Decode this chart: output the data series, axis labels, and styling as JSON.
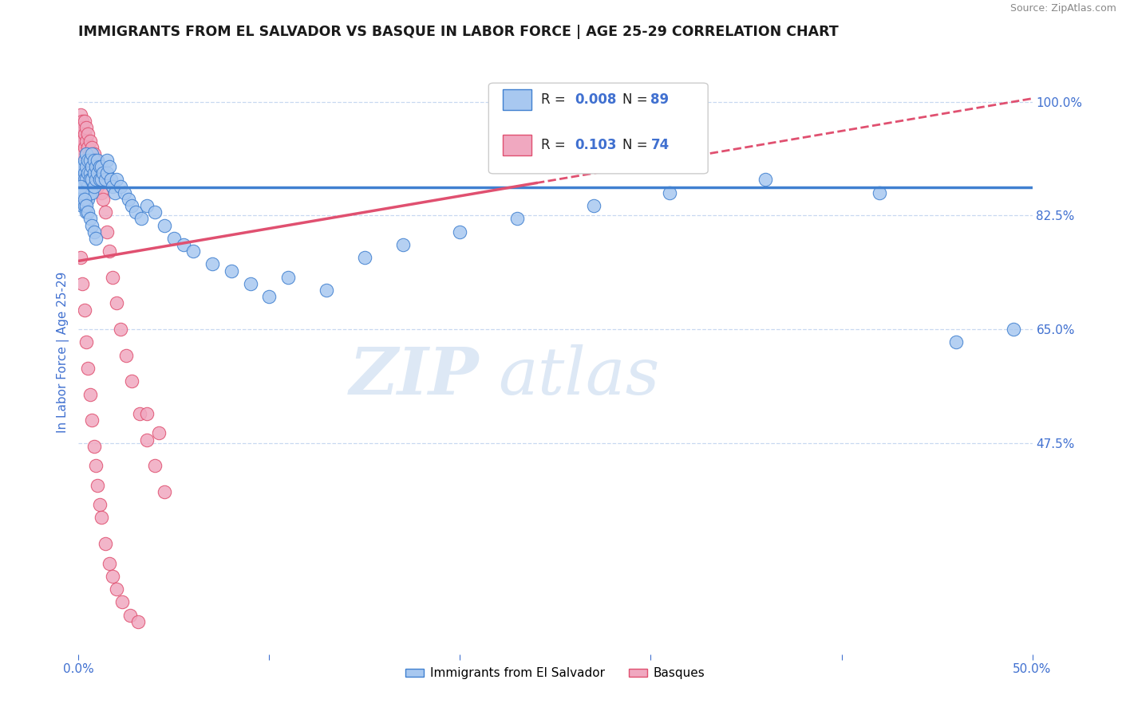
{
  "title": "IMMIGRANTS FROM EL SALVADOR VS BASQUE IN LABOR FORCE | AGE 25-29 CORRELATION CHART",
  "source": "Source: ZipAtlas.com",
  "ylabel": "In Labor Force | Age 25-29",
  "xlim": [
    0.0,
    0.5
  ],
  "ylim": [
    0.15,
    1.08
  ],
  "xticks": [
    0.0,
    0.1,
    0.2,
    0.3,
    0.4,
    0.5
  ],
  "xticklabels": [
    "0.0%",
    "",
    "",
    "",
    "",
    "50.0%"
  ],
  "yticks_right": [
    0.475,
    0.65,
    0.825,
    1.0
  ],
  "yticklabels_right": [
    "47.5%",
    "65.0%",
    "82.5%",
    "100.0%"
  ],
  "blue_color": "#a8c8f0",
  "pink_color": "#f0a8c0",
  "line_blue": "#4080d0",
  "line_pink": "#e05070",
  "grid_color": "#c8d8f0",
  "title_color": "#1a1a1a",
  "axis_label_color": "#4070d0",
  "blue_trend_y0": 0.868,
  "blue_trend_y1": 0.868,
  "pink_trend_y0": 0.755,
  "pink_trend_y1": 1.005,
  "blue_scatter_x": [
    0.001,
    0.001,
    0.001,
    0.001,
    0.002,
    0.002,
    0.002,
    0.002,
    0.002,
    0.003,
    0.003,
    0.003,
    0.003,
    0.003,
    0.004,
    0.004,
    0.004,
    0.004,
    0.004,
    0.004,
    0.005,
    0.005,
    0.005,
    0.005,
    0.006,
    0.006,
    0.006,
    0.006,
    0.007,
    0.007,
    0.007,
    0.007,
    0.008,
    0.008,
    0.008,
    0.009,
    0.009,
    0.01,
    0.01,
    0.011,
    0.011,
    0.012,
    0.012,
    0.013,
    0.014,
    0.015,
    0.015,
    0.016,
    0.017,
    0.018,
    0.019,
    0.02,
    0.022,
    0.024,
    0.026,
    0.028,
    0.03,
    0.033,
    0.036,
    0.04,
    0.045,
    0.05,
    0.055,
    0.06,
    0.07,
    0.08,
    0.09,
    0.1,
    0.11,
    0.13,
    0.15,
    0.17,
    0.2,
    0.23,
    0.27,
    0.31,
    0.36,
    0.42,
    0.46,
    0.49,
    0.001,
    0.002,
    0.003,
    0.004,
    0.005,
    0.006,
    0.007,
    0.008,
    0.009
  ],
  "blue_scatter_y": [
    0.9,
    0.88,
    0.87,
    0.85,
    0.9,
    0.88,
    0.87,
    0.86,
    0.84,
    0.91,
    0.89,
    0.88,
    0.86,
    0.84,
    0.92,
    0.9,
    0.88,
    0.86,
    0.85,
    0.83,
    0.91,
    0.89,
    0.87,
    0.85,
    0.91,
    0.89,
    0.88,
    0.86,
    0.92,
    0.9,
    0.88,
    0.86,
    0.91,
    0.89,
    0.87,
    0.9,
    0.88,
    0.91,
    0.89,
    0.9,
    0.88,
    0.9,
    0.88,
    0.89,
    0.88,
    0.91,
    0.89,
    0.9,
    0.88,
    0.87,
    0.86,
    0.88,
    0.87,
    0.86,
    0.85,
    0.84,
    0.83,
    0.82,
    0.84,
    0.83,
    0.81,
    0.79,
    0.78,
    0.77,
    0.75,
    0.74,
    0.72,
    0.7,
    0.73,
    0.71,
    0.76,
    0.78,
    0.8,
    0.82,
    0.84,
    0.86,
    0.88,
    0.86,
    0.63,
    0.65,
    0.87,
    0.86,
    0.85,
    0.84,
    0.83,
    0.82,
    0.81,
    0.8,
    0.79
  ],
  "pink_scatter_x": [
    0.0,
    0.001,
    0.001,
    0.001,
    0.001,
    0.001,
    0.002,
    0.002,
    0.002,
    0.002,
    0.002,
    0.002,
    0.003,
    0.003,
    0.003,
    0.003,
    0.003,
    0.004,
    0.004,
    0.004,
    0.004,
    0.004,
    0.005,
    0.005,
    0.005,
    0.005,
    0.006,
    0.006,
    0.006,
    0.006,
    0.007,
    0.007,
    0.007,
    0.008,
    0.008,
    0.009,
    0.009,
    0.01,
    0.01,
    0.011,
    0.012,
    0.013,
    0.014,
    0.015,
    0.016,
    0.018,
    0.02,
    0.022,
    0.025,
    0.028,
    0.032,
    0.036,
    0.04,
    0.045,
    0.001,
    0.002,
    0.003,
    0.004,
    0.005,
    0.006,
    0.007,
    0.008,
    0.009,
    0.01,
    0.011,
    0.012,
    0.014,
    0.016,
    0.018,
    0.02,
    0.023,
    0.027,
    0.031,
    0.036,
    0.042
  ],
  "pink_scatter_y": [
    0.88,
    0.98,
    0.96,
    0.94,
    0.88,
    0.86,
    0.97,
    0.96,
    0.94,
    0.92,
    0.88,
    0.86,
    0.97,
    0.95,
    0.93,
    0.9,
    0.87,
    0.96,
    0.94,
    0.92,
    0.89,
    0.87,
    0.95,
    0.93,
    0.91,
    0.88,
    0.94,
    0.92,
    0.9,
    0.88,
    0.93,
    0.91,
    0.89,
    0.92,
    0.89,
    0.91,
    0.88,
    0.9,
    0.87,
    0.88,
    0.86,
    0.85,
    0.83,
    0.8,
    0.77,
    0.73,
    0.69,
    0.65,
    0.61,
    0.57,
    0.52,
    0.48,
    0.44,
    0.4,
    0.76,
    0.72,
    0.68,
    0.63,
    0.59,
    0.55,
    0.51,
    0.47,
    0.44,
    0.41,
    0.38,
    0.36,
    0.32,
    0.29,
    0.27,
    0.25,
    0.23,
    0.21,
    0.2,
    0.52,
    0.49
  ]
}
